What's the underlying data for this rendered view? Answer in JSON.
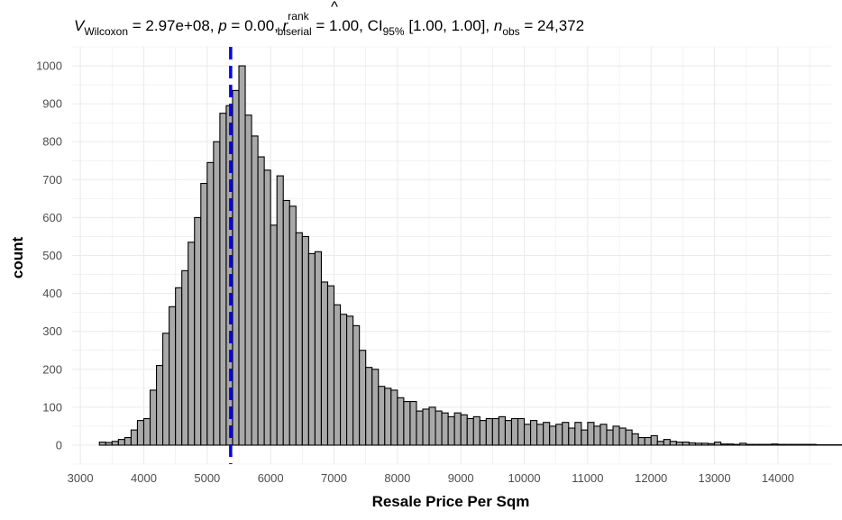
{
  "chart_data": {
    "type": "histogram",
    "title_parts": {
      "stat_symbol": "V",
      "stat_subscript": "Wilcoxon",
      "stat_value": " = 2.97e+08, ",
      "p_symbol": "p",
      "p_value": " = 0.00, ",
      "r_symbol": "r",
      "r_superscript": "rank",
      "r_subscript": "biserial",
      "r_value": " = 1.00, CI",
      "ci_subscript": "95%",
      "ci_value": " [1.00, 1.00], ",
      "n_symbol": "n",
      "n_subscript": "obs",
      "n_value": " = 24,372"
    },
    "xlabel": "Resale Price Per Sqm",
    "ylabel": "count",
    "xlim": [
      2870,
      14840
    ],
    "ylim": [
      -50,
      1050
    ],
    "x_ticks": [
      3000,
      4000,
      5000,
      6000,
      7000,
      8000,
      9000,
      10000,
      11000,
      12000,
      13000,
      14000
    ],
    "y_ticks": [
      0,
      100,
      200,
      300,
      400,
      500,
      600,
      700,
      800,
      900,
      1000
    ],
    "grid": true,
    "bar_color": "#a9a9a9",
    "bar_outline": "#000000",
    "bin_width": 100,
    "bin_start": 3300,
    "counts": [
      8,
      7,
      10,
      15,
      20,
      40,
      65,
      70,
      145,
      210,
      295,
      365,
      415,
      460,
      535,
      600,
      690,
      745,
      800,
      875,
      895,
      935,
      1000,
      870,
      815,
      760,
      725,
      580,
      710,
      645,
      630,
      560,
      550,
      505,
      510,
      430,
      420,
      370,
      345,
      340,
      315,
      250,
      205,
      200,
      155,
      150,
      145,
      125,
      115,
      115,
      90,
      95,
      100,
      90,
      85,
      75,
      85,
      80,
      70,
      75,
      65,
      70,
      70,
      75,
      65,
      70,
      70,
      55,
      65,
      55,
      60,
      50,
      55,
      60,
      45,
      60,
      40,
      60,
      50,
      55,
      40,
      50,
      45,
      40,
      30,
      20,
      20,
      25,
      10,
      15,
      10,
      8,
      8,
      6,
      5,
      5,
      4,
      8,
      3,
      3,
      2,
      5,
      2,
      2,
      2,
      2,
      3,
      2,
      2,
      2,
      2,
      2,
      2,
      1,
      1,
      1,
      1,
      1,
      1,
      1
    ],
    "reference_line": {
      "x": 5370,
      "color": "#0000ff",
      "style": "dashed"
    }
  }
}
